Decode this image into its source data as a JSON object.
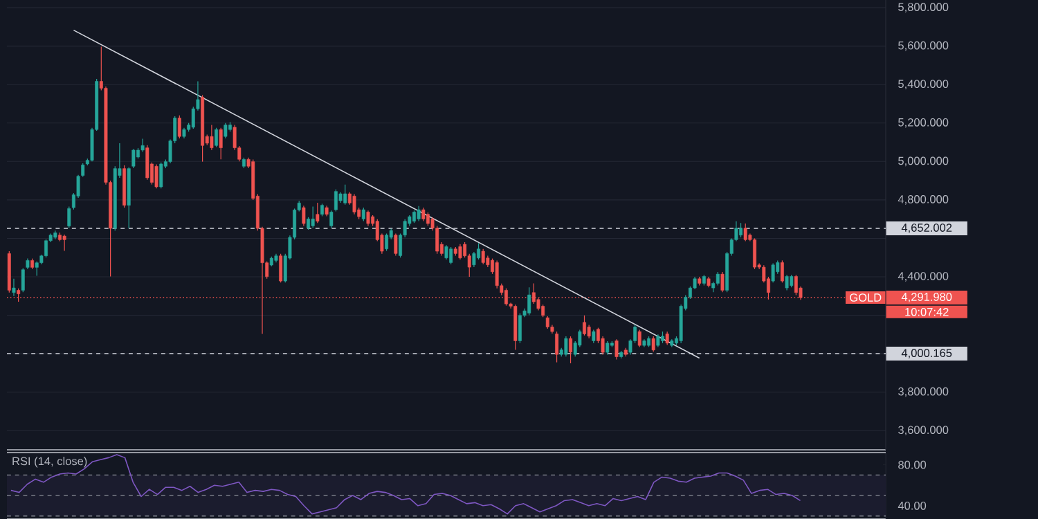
{
  "chart_data": [
    {
      "type": "candlestick",
      "categories": [
        null,
        null,
        null,
        null,
        null,
        null,
        null,
        null,
        null,
        null,
        null,
        null,
        null,
        null,
        null,
        null,
        null,
        null,
        null,
        null,
        null,
        null,
        null,
        null,
        null,
        null,
        null,
        null,
        null,
        null,
        null,
        null,
        null,
        null,
        null,
        null,
        null,
        null,
        null,
        null,
        null,
        null,
        null,
        null,
        null,
        null,
        null,
        null,
        null,
        null,
        null,
        null,
        null,
        null,
        null,
        null,
        null,
        null,
        null,
        null,
        null,
        null,
        null,
        null,
        null,
        null,
        null,
        null,
        null,
        null,
        null,
        null,
        null,
        null,
        null,
        null,
        null,
        null,
        null,
        null,
        null,
        null,
        null,
        null,
        null,
        null,
        null,
        null,
        null,
        null,
        null,
        null,
        null,
        null,
        null,
        null,
        null,
        null,
        null,
        null,
        null,
        null,
        null,
        null,
        null,
        null,
        null,
        null,
        null,
        null,
        null,
        null,
        null,
        null,
        null,
        null,
        null,
        null,
        null,
        null,
        null,
        null,
        null,
        null,
        null,
        null,
        null,
        null,
        null,
        null,
        null,
        null,
        null,
        null,
        null,
        null,
        null,
        null,
        null,
        null,
        null,
        null,
        null,
        null,
        null,
        null,
        null,
        null,
        null,
        null,
        null,
        null,
        null,
        null,
        null,
        null,
        null,
        null,
        null,
        null,
        null,
        null,
        null,
        null,
        null,
        null,
        null,
        null,
        null,
        null,
        null,
        null,
        null,
        null,
        null,
        null,
        null,
        null,
        null,
        null,
        null,
        null,
        null,
        null,
        null,
        null,
        null,
        null,
        null,
        null,
        null
      ],
      "ohlc": [
        [
          4521,
          4533,
          4318,
          4330
        ],
        [
          4318,
          4390,
          4300,
          4342
        ],
        [
          4330,
          4340,
          4270,
          4311
        ],
        [
          4330,
          4445,
          4320,
          4437
        ],
        [
          4449,
          4495,
          4440,
          4485
        ],
        [
          4485,
          4495,
          4440,
          4449
        ],
        [
          4449,
          4480,
          4405,
          4473
        ],
        [
          4473,
          4515,
          4465,
          4509
        ],
        [
          4509,
          4595,
          4500,
          4588
        ],
        [
          4588,
          4625,
          4580,
          4617
        ],
        [
          4605,
          4640,
          4595,
          4629
        ],
        [
          4617,
          4630,
          4585,
          4593
        ],
        [
          4612,
          4620,
          4535,
          4593
        ],
        [
          4664,
          4765,
          4655,
          4755
        ],
        [
          4760,
          4835,
          4750,
          4827
        ],
        [
          4820,
          4930,
          4810,
          4923
        ],
        [
          4927,
          4990,
          4920,
          4982
        ],
        [
          4987,
          5015,
          4980,
          5006
        ],
        [
          5006,
          5175,
          5000,
          5166
        ],
        [
          5166,
          5430,
          5160,
          5417
        ],
        [
          5417,
          5597,
          5370,
          5381
        ],
        [
          5381,
          5390,
          4880,
          4891
        ],
        [
          4891,
          4900,
          4402,
          4652
        ],
        [
          4652,
          4975,
          4640,
          4963
        ],
        [
          4927,
          5095,
          4915,
          4963
        ],
        [
          4963,
          4980,
          4760,
          4772
        ],
        [
          4772,
          4970,
          4652,
          4963
        ],
        [
          4975,
          5065,
          4965,
          5059
        ],
        [
          5023,
          5070,
          5015,
          5059
        ],
        [
          5059,
          5118,
          5050,
          5083
        ],
        [
          5071,
          5085,
          4905,
          4915
        ],
        [
          4987,
          4995,
          4880,
          4891
        ],
        [
          4975,
          4985,
          4860,
          4868
        ],
        [
          4868,
          4995,
          4860,
          4987
        ],
        [
          4975,
          5010,
          4965,
          4999
        ],
        [
          4999,
          5115,
          4990,
          5107
        ],
        [
          5107,
          5235,
          5095,
          5226
        ],
        [
          5226,
          5240,
          5120,
          5130
        ],
        [
          5130,
          5175,
          5120,
          5166
        ],
        [
          5166,
          5200,
          5155,
          5190
        ],
        [
          5178,
          5285,
          5170,
          5274
        ],
        [
          5274,
          5417,
          5265,
          5322
        ],
        [
          5334,
          5345,
          4999,
          5083
        ],
        [
          5130,
          5140,
          5085,
          5095
        ],
        [
          5130,
          5190,
          5060,
          5071
        ],
        [
          5083,
          5175,
          5075,
          5166
        ],
        [
          5166,
          5175,
          5011,
          5071
        ],
        [
          5130,
          5200,
          5120,
          5190
        ],
        [
          5166,
          5205,
          5155,
          5190
        ],
        [
          5178,
          5190,
          5060,
          5071
        ],
        [
          5071,
          5080,
          5000,
          5011
        ],
        [
          4975,
          5020,
          4965,
          5011
        ],
        [
          5011,
          5020,
          4965,
          4975
        ],
        [
          4999,
          5010,
          4800,
          4808
        ],
        [
          4820,
          4830,
          4640,
          4652
        ],
        [
          4652,
          4660,
          4103,
          4473
        ],
        [
          4473,
          4480,
          4390,
          4401
        ],
        [
          4461,
          4505,
          4455,
          4497
        ],
        [
          4485,
          4520,
          4475,
          4509
        ],
        [
          4509,
          4520,
          4370,
          4378
        ],
        [
          4378,
          4520,
          4370,
          4509
        ],
        [
          4497,
          4615,
          4490,
          4605
        ],
        [
          4605,
          4755,
          4595,
          4748
        ],
        [
          4748,
          4795,
          4740,
          4784
        ],
        [
          4760,
          4770,
          4665,
          4677
        ],
        [
          4653,
          4710,
          4645,
          4701
        ],
        [
          4665,
          4765,
          4655,
          4701
        ],
        [
          4725,
          4785,
          4680,
          4689
        ],
        [
          4725,
          4780,
          4715,
          4772
        ],
        [
          4760,
          4770,
          4715,
          4725
        ],
        [
          4665,
          4745,
          4655,
          4737
        ],
        [
          4749,
          4855,
          4740,
          4844
        ],
        [
          4796,
          4840,
          4785,
          4832
        ],
        [
          4784,
          4880,
          4775,
          4832
        ],
        [
          4832,
          4840,
          4775,
          4784
        ],
        [
          4820,
          4830,
          4725,
          4737
        ],
        [
          4749,
          4760,
          4700,
          4713
        ],
        [
          4701,
          4760,
          4690,
          4749
        ],
        [
          4737,
          4745,
          4665,
          4677
        ],
        [
          4713,
          4720,
          4665,
          4677
        ],
        [
          4689,
          4700,
          4585,
          4593
        ],
        [
          4617,
          4625,
          4520,
          4533
        ],
        [
          4545,
          4625,
          4535,
          4617
        ],
        [
          4605,
          4650,
          4595,
          4641
        ],
        [
          4617,
          4625,
          4510,
          4521
        ],
        [
          4510,
          4625,
          4500,
          4617
        ],
        [
          4617,
          4700,
          4605,
          4689
        ],
        [
          4677,
          4720,
          4665,
          4713
        ],
        [
          4689,
          4745,
          4680,
          4737
        ],
        [
          4701,
          4768,
          4690,
          4749
        ],
        [
          4749,
          4760,
          4690,
          4701
        ],
        [
          4725,
          4735,
          4665,
          4677
        ],
        [
          4701,
          4710,
          4640,
          4653
        ],
        [
          4653,
          4665,
          4520,
          4533
        ],
        [
          4569,
          4580,
          4510,
          4521
        ],
        [
          4498,
          4565,
          4490,
          4557
        ],
        [
          4474,
          4555,
          4465,
          4545
        ],
        [
          4545,
          4555,
          4510,
          4521
        ],
        [
          4557,
          4570,
          4490,
          4498
        ],
        [
          4569,
          4580,
          4500,
          4509
        ],
        [
          4509,
          4520,
          4400,
          4450
        ],
        [
          4462,
          4530,
          4450,
          4521
        ],
        [
          4498,
          4575,
          4490,
          4545
        ],
        [
          4533,
          4545,
          4465,
          4474
        ],
        [
          4498,
          4510,
          4450,
          4462
        ],
        [
          4486,
          4495,
          4415,
          4426
        ],
        [
          4474,
          4485,
          4340,
          4354
        ],
        [
          4354,
          4365,
          4305,
          4318
        ],
        [
          4330,
          4340,
          4250,
          4259
        ],
        [
          4259,
          4265,
          4235,
          4247
        ],
        [
          4247,
          4255,
          4020,
          4067
        ],
        [
          4067,
          4210,
          4055,
          4199
        ],
        [
          4199,
          4235,
          4190,
          4223
        ],
        [
          4211,
          4345,
          4200,
          4306
        ],
        [
          4318,
          4366,
          4260,
          4270
        ],
        [
          4282,
          4290,
          4225,
          4235
        ],
        [
          4247,
          4255,
          4190,
          4199
        ],
        [
          4187,
          4195,
          4130,
          4139
        ],
        [
          4139,
          4150,
          4105,
          4115
        ],
        [
          4103,
          4115,
          3955,
          3996
        ],
        [
          3996,
          4030,
          3985,
          4020
        ],
        [
          3996,
          4090,
          3985,
          4079
        ],
        [
          4079,
          4090,
          3950,
          4008
        ],
        [
          3996,
          4065,
          3985,
          4056
        ],
        [
          4044,
          4125,
          4035,
          4115
        ],
        [
          4163,
          4199,
          4095,
          4103
        ],
        [
          4139,
          4150,
          4080,
          4091
        ],
        [
          4067,
          4125,
          4055,
          4115
        ],
        [
          4127,
          4135,
          4055,
          4067
        ],
        [
          4079,
          4090,
          3995,
          4007
        ],
        [
          4007,
          4065,
          3995,
          4055
        ],
        [
          4043,
          4065,
          4035,
          4055
        ],
        [
          4067,
          4075,
          3970,
          3984
        ],
        [
          3984,
          4015,
          3975,
          4007
        ],
        [
          4019,
          4030,
          3985,
          3996
        ],
        [
          4007,
          4075,
          3995,
          4067
        ],
        [
          4067,
          4150,
          4055,
          4139
        ],
        [
          4115,
          4125,
          4035,
          4043
        ],
        [
          4043,
          4075,
          4035,
          4067
        ],
        [
          4043,
          4090,
          4035,
          4079
        ],
        [
          4079,
          4090,
          4010,
          4019
        ],
        [
          4043,
          4100,
          4035,
          4091
        ],
        [
          4067,
          4115,
          4055,
          4091
        ],
        [
          4103,
          4115,
          4045,
          4055
        ],
        [
          4043,
          4075,
          4035,
          4067
        ],
        [
          4055,
          4090,
          4045,
          4079
        ],
        [
          4067,
          4255,
          4055,
          4247
        ],
        [
          4235,
          4305,
          4225,
          4294
        ],
        [
          4294,
          4350,
          4285,
          4342
        ],
        [
          4342,
          4400,
          4335,
          4390
        ],
        [
          4390,
          4400,
          4355,
          4366
        ],
        [
          4366,
          4410,
          4355,
          4402
        ],
        [
          4390,
          4400,
          4345,
          4354
        ],
        [
          4342,
          4375,
          4320,
          4366
        ],
        [
          4366,
          4425,
          4355,
          4414
        ],
        [
          4414,
          4425,
          4320,
          4330
        ],
        [
          4330,
          4530,
          4320,
          4521
        ],
        [
          4521,
          4600,
          4510,
          4593
        ],
        [
          4593,
          4689,
          4585,
          4653
        ],
        [
          4617,
          4680,
          4605,
          4653
        ],
        [
          4653,
          4677,
          4585,
          4593
        ],
        [
          4617,
          4625,
          4585,
          4593
        ],
        [
          4593,
          4600,
          4440,
          4450
        ],
        [
          4462,
          4470,
          4440,
          4450
        ],
        [
          4450,
          4460,
          4370,
          4378
        ],
        [
          4390,
          4400,
          4282,
          4318
        ],
        [
          4378,
          4470,
          4370,
          4462
        ],
        [
          4426,
          4485,
          4415,
          4474
        ],
        [
          4474,
          4485,
          4370,
          4378
        ],
        [
          4342,
          4410,
          4330,
          4402
        ],
        [
          4354,
          4410,
          4345,
          4402
        ],
        [
          4402,
          4410,
          4305,
          4318
        ],
        [
          4342,
          4350,
          4280,
          4292
        ],
        null,
        null,
        null,
        null,
        null,
        null,
        null,
        null,
        null,
        null,
        null,
        null,
        null,
        null,
        null,
        null,
        null,
        null
      ],
      "series": [
        {
          "type": "line",
          "color": "#d1d4dc",
          "values": [
            null,
            null,
            null,
            null,
            null,
            null,
            null,
            null,
            null,
            null,
            null,
            null,
            null,
            null,
            5683,
            null,
            null,
            null,
            null,
            null,
            null,
            null,
            null,
            null,
            null,
            null,
            null,
            null,
            null,
            null,
            null,
            null,
            null,
            null,
            null,
            null,
            null,
            null,
            null,
            null,
            null,
            null,
            null,
            null,
            null,
            null,
            null,
            null,
            null,
            null,
            null,
            null,
            null,
            null,
            null,
            null,
            null,
            null,
            null,
            null,
            null,
            null,
            null,
            null,
            null,
            null,
            null,
            null,
            null,
            null,
            null,
            null,
            null,
            null,
            null,
            null,
            null,
            null,
            null,
            null,
            null,
            null,
            null,
            null,
            null,
            null,
            null,
            null,
            null,
            null,
            null,
            null,
            null,
            null,
            null,
            null,
            null,
            null,
            null,
            null,
            null,
            null,
            null,
            null,
            null,
            null,
            null,
            null,
            null,
            null,
            null,
            null,
            null,
            null,
            null,
            null,
            null,
            null,
            null,
            null,
            null,
            null,
            null,
            null,
            null,
            null,
            null,
            null,
            null,
            null,
            null,
            null,
            null,
            null,
            null,
            null,
            null,
            null,
            null,
            null,
            null,
            null,
            null,
            null,
            null,
            null,
            null,
            null,
            null,
            null,
            3977,
            null,
            null,
            null,
            null,
            null,
            null,
            null,
            null,
            null,
            null,
            null,
            null,
            null,
            null,
            null,
            null,
            null,
            null,
            null,
            null,
            null,
            null,
            null,
            null,
            null,
            null,
            null,
            null,
            null,
            null,
            null,
            null,
            null,
            null,
            null,
            null,
            null,
            null,
            null,
            null
          ]
        }
      ],
      "ylim": [
        3500,
        5840
      ],
      "yticks": [
        {
          "value": 3600,
          "label": "3,600.000"
        },
        {
          "value": 3800,
          "label": "3,800.000"
        },
        {
          "value": 4000,
          "label": null
        },
        {
          "value": 4200,
          "label": null
        },
        {
          "value": 4400,
          "label": "4,400.000"
        },
        {
          "value": 4600,
          "label": null
        },
        {
          "value": 4800,
          "label": "4,800.000"
        },
        {
          "value": 5000,
          "label": "5,000.000"
        },
        {
          "value": 5200,
          "label": "5,200.000"
        },
        {
          "value": 5400,
          "label": "5,400.000"
        },
        {
          "value": 5600,
          "label": "5,600.000"
        },
        {
          "value": 5800,
          "label": "5,800.000"
        }
      ],
      "grid": "y",
      "tick_labels": "y",
      "ref_lines": [
        {
          "axis": "y",
          "value": 4652.002,
          "label": "4,652.002",
          "color": "#d1d4dc",
          "line_style": "dashed"
        },
        {
          "axis": "y",
          "value": 4000.165,
          "label": "4,000.165",
          "color": "#d1d4dc",
          "line_style": "dashed"
        },
        {
          "axis": "y",
          "value": 4291.98,
          "label": "4,291.980",
          "color": "#ef5350",
          "line_style": "dotted"
        }
      ],
      "annotations": [
        "GOLD",
        "10:07:42"
      ]
    },
    {
      "type": "line",
      "title": "RSI (14, close)",
      "categories": [
        null,
        null,
        null,
        null,
        null,
        null,
        null,
        null,
        null,
        null,
        null,
        null,
        null,
        null,
        null,
        null,
        null,
        null,
        null,
        null,
        null,
        null,
        null,
        null,
        null,
        null,
        null,
        null,
        null,
        null,
        null,
        null,
        null,
        null,
        null,
        null,
        null,
        null,
        null,
        null,
        null,
        null,
        null,
        null,
        null,
        null,
        null,
        null,
        null,
        null,
        null,
        null,
        null,
        null,
        null,
        null,
        null,
        null,
        null,
        null,
        null,
        null,
        null,
        null,
        null,
        null,
        null,
        null,
        null,
        null,
        null,
        null,
        null,
        null,
        null,
        null,
        null,
        null,
        null,
        null,
        null,
        null,
        null,
        null,
        null,
        null,
        null,
        null,
        null,
        null,
        null,
        null,
        null,
        null,
        null,
        null,
        null,
        null,
        null,
        null,
        null,
        null,
        null,
        null,
        null,
        null,
        null,
        null
      ],
      "values": [
        55,
        53,
        61,
        66,
        63,
        68,
        71,
        72,
        71,
        76,
        83,
        85,
        87,
        90,
        87,
        63,
        49,
        56,
        51,
        58,
        58,
        55,
        59,
        53,
        56,
        60,
        59,
        61,
        63,
        53,
        55,
        54,
        56,
        55,
        51,
        49,
        40,
        32,
        34,
        36,
        38,
        46,
        50,
        46,
        52,
        54,
        53,
        50,
        46,
        47,
        40,
        42,
        51,
        52,
        50,
        46,
        42,
        43,
        40,
        41,
        37,
        32,
        40,
        42,
        38,
        34,
        37,
        40,
        45,
        46,
        43,
        40,
        42,
        40,
        47,
        45,
        47,
        49,
        46,
        63,
        68,
        67,
        64,
        63,
        67,
        68,
        69,
        72,
        72,
        69,
        65,
        52,
        55,
        56,
        51,
        52,
        50,
        45,
        null,
        null,
        null,
        null,
        null,
        null,
        null,
        null,
        null,
        null
      ],
      "color": "#7e57c2",
      "ylim": [
        27,
        92
      ],
      "yticks": [
        {
          "value": 40,
          "label": "40.00"
        },
        {
          "value": 80,
          "label": "80.00"
        }
      ],
      "tick_labels": "y",
      "bands": [
        {
          "axis": "y",
          "from": 30,
          "to": 70,
          "color": "#1b1c2e"
        }
      ],
      "ref_lines": [
        {
          "axis": "y",
          "value": 70,
          "color": "#787b86",
          "line_style": "dashed"
        },
        {
          "axis": "y",
          "value": 50,
          "color": "#787b86",
          "line_style": "dashed"
        },
        {
          "axis": "y",
          "value": 30,
          "color": "#787b86",
          "line_style": "dashed"
        }
      ]
    }
  ]
}
